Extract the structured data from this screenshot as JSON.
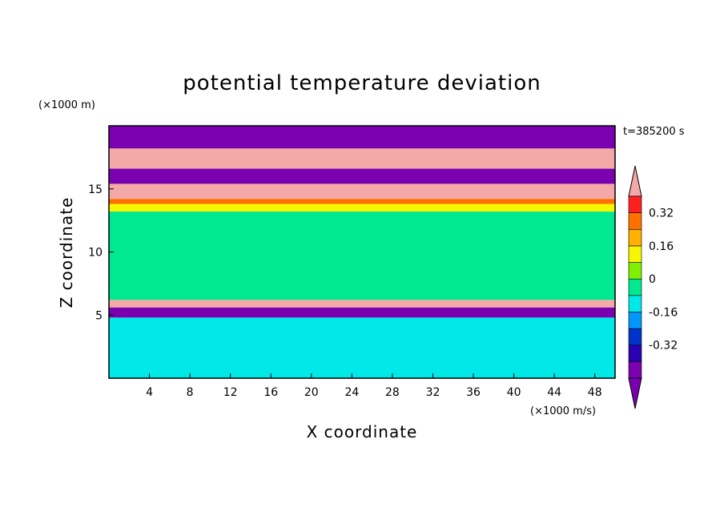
{
  "chart_data": {
    "type": "heatmap",
    "title": "potential temperature deviation",
    "xlabel": "X coordinate",
    "ylabel": "Z coordinate",
    "x_unit": "(×1000 m/s)",
    "y_unit": "(×1000 m)",
    "time_label": "t=385200 s",
    "xlim": [
      0,
      50
    ],
    "ylim": [
      0,
      20
    ],
    "x_ticks": [
      4,
      8,
      12,
      16,
      20,
      24,
      28,
      32,
      36,
      40,
      44,
      48
    ],
    "y_ticks": [
      5,
      10,
      15
    ],
    "colorbar": {
      "levels": [
        -0.48,
        -0.4,
        -0.32,
        -0.24,
        -0.16,
        -0.08,
        0,
        0.08,
        0.16,
        0.24,
        0.32,
        0.4
      ],
      "colors": [
        "#7a00b0",
        "#2b00b0",
        "#0033cc",
        "#0098ff",
        "#00e8e8",
        "#00e890",
        "#80f000",
        "#f6f600",
        "#ffb000",
        "#ff7000",
        "#ff2020",
        "#f4a8a8"
      ],
      "tick_labels": [
        "-0.32",
        "-0.16",
        "0",
        "0.16",
        "0.32"
      ],
      "tick_values": [
        -0.32,
        -0.16,
        0,
        0.16,
        0.32
      ],
      "extend": "both"
    },
    "z_layers": [
      {
        "range": [
          18.2,
          20
        ],
        "value": -0.5
      },
      {
        "range": [
          16.6,
          18.2
        ],
        "value": 0.45
      },
      {
        "range": [
          15.4,
          16.6
        ],
        "value": -0.5
      },
      {
        "range": [
          14.2,
          15.4
        ],
        "value": 0.45
      },
      {
        "range": [
          13.8,
          14.2
        ],
        "value": 0.3
      },
      {
        "range": [
          13.2,
          13.8
        ],
        "value": 0.15
      },
      {
        "range": [
          6.2,
          13.2
        ],
        "value": -0.02
      },
      {
        "range": [
          5.6,
          6.2
        ],
        "value": 0.45
      },
      {
        "range": [
          4.8,
          5.6
        ],
        "value": -0.5
      },
      {
        "range": [
          0,
          4.8
        ],
        "value": -0.1
      }
    ]
  }
}
